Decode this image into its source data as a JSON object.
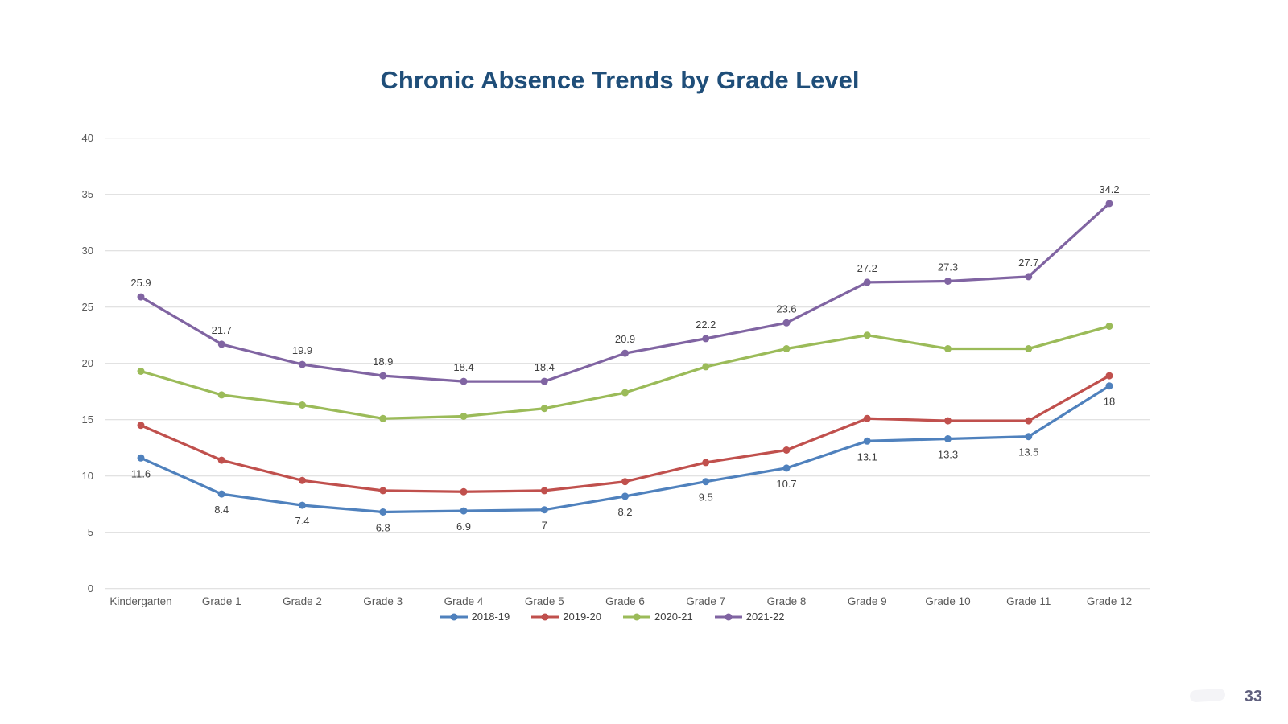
{
  "title": {
    "text": "Chronic Absence Trends by Grade Level",
    "color": "#1F4E79"
  },
  "page_number": "33",
  "chart_data": {
    "type": "line",
    "title": "Chronic Absence Trends by Grade Level",
    "categories": [
      "Kindergarten",
      "Grade 1",
      "Grade 2",
      "Grade 3",
      "Grade 4",
      "Grade 5",
      "Grade 6",
      "Grade 7",
      "Grade 8",
      "Grade 9",
      "Grade 10",
      "Grade 11",
      "Grade 12"
    ],
    "series": [
      {
        "name": "2018-19",
        "color": "#4F81BD",
        "values": [
          11.6,
          8.4,
          7.4,
          6.8,
          6.9,
          7,
          8.2,
          9.5,
          10.7,
          13.1,
          13.3,
          13.5,
          18
        ],
        "data_labels": "below"
      },
      {
        "name": "2019-20",
        "color": "#C0504D",
        "values": [
          14.5,
          11.4,
          9.6,
          8.7,
          8.6,
          8.7,
          9.5,
          11.2,
          12.3,
          15.1,
          14.9,
          14.9,
          18.9
        ],
        "data_labels": "none"
      },
      {
        "name": "2020-21",
        "color": "#9BBB59",
        "values": [
          19.3,
          17.2,
          16.3,
          15.1,
          15.3,
          16,
          17.4,
          19.7,
          21.3,
          22.5,
          21.3,
          21.3,
          23.3
        ],
        "data_labels": "none"
      },
      {
        "name": "2021-22",
        "color": "#8064A2",
        "values": [
          25.9,
          21.7,
          19.9,
          18.9,
          18.4,
          18.4,
          20.9,
          22.2,
          23.6,
          27.2,
          27.3,
          27.7,
          34.2
        ],
        "data_labels": "above"
      }
    ],
    "ylim": [
      0,
      40
    ],
    "ytick_step": 5,
    "ytick_labels": [
      "0",
      "5",
      "10",
      "15",
      "20",
      "25",
      "30",
      "35",
      "40"
    ],
    "grid": "horizontal",
    "gridline_color": "#D9D9D9",
    "axis_label_color": "#595959",
    "data_label_color": "#3F3F3F",
    "legend_position": "bottom",
    "xlabel": "",
    "ylabel": ""
  }
}
